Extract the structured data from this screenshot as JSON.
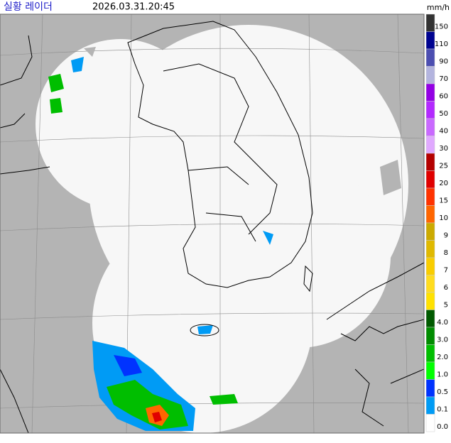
{
  "header": {
    "title": "실황 레이더",
    "timestamp": "2026.03.31.20:45"
  },
  "legend": {
    "unit": "mm/h",
    "items": [
      {
        "label": "150",
        "color": "#333333"
      },
      {
        "label": "110",
        "color": "#000390"
      },
      {
        "label": "90",
        "color": "#4c4eb1"
      },
      {
        "label": "70",
        "color": "#b3b4de"
      },
      {
        "label": "60",
        "color": "#9300e4"
      },
      {
        "label": "50",
        "color": "#b329ff"
      },
      {
        "label": "40",
        "color": "#c969ff"
      },
      {
        "label": "30",
        "color": "#e0a9ff"
      },
      {
        "label": "25",
        "color": "#b40000"
      },
      {
        "label": "20",
        "color": "#e00000"
      },
      {
        "label": "15",
        "color": "#ff3300"
      },
      {
        "label": "10",
        "color": "#ff6600"
      },
      {
        "label": "9",
        "color": "#ccaa00"
      },
      {
        "label": "8",
        "color": "#e0b900"
      },
      {
        "label": "7",
        "color": "#f9cd00"
      },
      {
        "label": "6",
        "color": "#ffdc1f"
      },
      {
        "label": "5",
        "color": "#ffe100"
      },
      {
        "label": "4.0",
        "color": "#005a00"
      },
      {
        "label": "3.0",
        "color": "#008c00"
      },
      {
        "label": "2.0",
        "color": "#00be00"
      },
      {
        "label": "1.0",
        "color": "#00ff00"
      },
      {
        "label": "0.5",
        "color": "#0033ff"
      },
      {
        "label": "0.1",
        "color": "#009bf5"
      },
      {
        "label": "0.0",
        "color": "#ffffff"
      }
    ]
  }
}
